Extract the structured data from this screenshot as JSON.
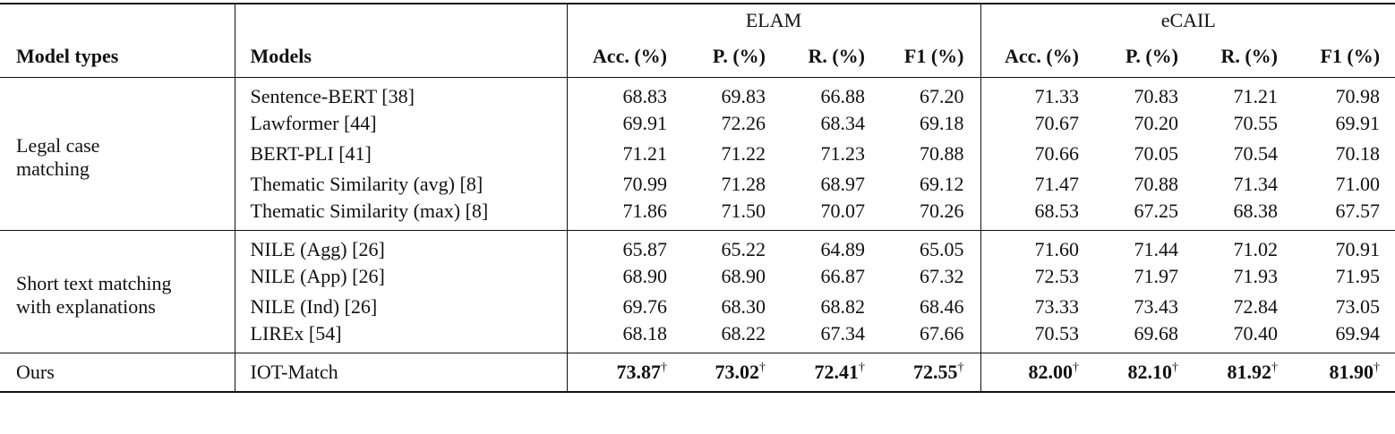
{
  "header": {
    "model_types": "Model types",
    "models": "Models",
    "groups": [
      {
        "name": "ELAM",
        "metrics": [
          "Acc. (%)",
          "P. (%)",
          "R. (%)",
          "F1 (%)"
        ]
      },
      {
        "name": "eCAIL",
        "metrics": [
          "Acc. (%)",
          "P. (%)",
          "R. (%)",
          "F1 (%)"
        ]
      }
    ]
  },
  "sections": [
    {
      "type_lines": [
        "Legal case",
        "matching"
      ],
      "rows": [
        {
          "model": "Sentence-BERT [38]",
          "values": [
            "68.83",
            "69.83",
            "66.88",
            "67.20",
            "71.33",
            "70.83",
            "71.21",
            "70.98"
          ]
        },
        {
          "model": "Lawformer [44]",
          "values": [
            "69.91",
            "72.26",
            "68.34",
            "69.18",
            "70.67",
            "70.20",
            "70.55",
            "69.91"
          ]
        },
        {
          "model": "BERT-PLI [41]",
          "values": [
            "71.21",
            "71.22",
            "71.23",
            "70.88",
            "70.66",
            "70.05",
            "70.54",
            "70.18"
          ]
        },
        {
          "model": "Thematic Similarity (avg) [8]",
          "values": [
            "70.99",
            "71.28",
            "68.97",
            "69.12",
            "71.47",
            "70.88",
            "71.34",
            "71.00"
          ]
        },
        {
          "model": "Thematic Similarity (max) [8]",
          "values": [
            "71.86",
            "71.50",
            "70.07",
            "70.26",
            "68.53",
            "67.25",
            "68.38",
            "67.57"
          ]
        }
      ]
    },
    {
      "type_lines": [
        "Short text matching",
        "with explanations"
      ],
      "rows": [
        {
          "model": "NILE (Agg) [26]",
          "values": [
            "65.87",
            "65.22",
            "64.89",
            "65.05",
            "71.60",
            "71.44",
            "71.02",
            "70.91"
          ]
        },
        {
          "model": "NILE (App) [26]",
          "values": [
            "68.90",
            "68.90",
            "66.87",
            "67.32",
            "72.53",
            "71.97",
            "71.93",
            "71.95"
          ]
        },
        {
          "model": "NILE (Ind) [26]",
          "values": [
            "69.76",
            "68.30",
            "68.82",
            "68.46",
            "73.33",
            "73.43",
            "72.84",
            "73.05"
          ]
        },
        {
          "model": "LIREx [54]",
          "values": [
            "68.18",
            "68.22",
            "67.34",
            "67.66",
            "70.53",
            "69.68",
            "70.40",
            "69.94"
          ]
        }
      ]
    },
    {
      "type_lines": [
        "Ours"
      ],
      "rows": [
        {
          "model": "IOT-Match",
          "values": [
            "73.87",
            "73.02",
            "72.41",
            "72.55",
            "82.00",
            "82.10",
            "81.92",
            "81.90"
          ],
          "marker": "†"
        }
      ]
    }
  ]
}
